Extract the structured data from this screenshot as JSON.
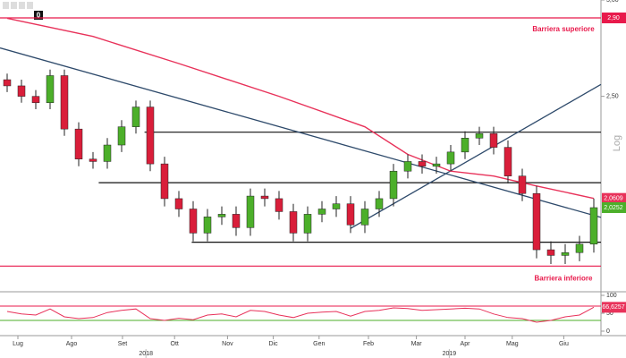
{
  "chart_data": [
    {
      "type": "candlestick",
      "log_scale": true,
      "ylim": [
        1.73,
        3.0
      ],
      "yticks": [
        {
          "value": 2.5,
          "label": "2,50"
        },
        {
          "value": 3.0,
          "label": "3,00"
        }
      ],
      "xlim": [
        -0.5,
        41.5
      ],
      "xticks": [
        {
          "value": 0.75,
          "label": "Lug"
        },
        {
          "value": 4.5,
          "label": "Ago"
        },
        {
          "value": 8.06,
          "label": "Set"
        },
        {
          "value": 11.7,
          "label": "Ott"
        },
        {
          "value": 15.4,
          "label": "Nov"
        },
        {
          "value": 18.6,
          "label": "Dic"
        },
        {
          "value": 21.8,
          "label": "Gen"
        },
        {
          "value": 25.25,
          "label": "Feb"
        },
        {
          "value": 28.6,
          "label": "Mar"
        },
        {
          "value": 32,
          "label": "Apr"
        },
        {
          "value": 35.3,
          "label": "Mag"
        },
        {
          "value": 38.9,
          "label": "Giu"
        }
      ],
      "year_ticks": [
        {
          "value": 9.7,
          "label": "2018"
        },
        {
          "value": 30.9,
          "label": "2019"
        }
      ],
      "scale_label": "Log",
      "toolbar_label": "0",
      "up_color": "#4caf2a",
      "down_color": "#d91e3a",
      "open": [
        2.58,
        2.55,
        2.5,
        2.47,
        2.6,
        2.35,
        2.22,
        2.21,
        2.28,
        2.36,
        2.45,
        2.2,
        2.06,
        2.02,
        1.93,
        1.99,
        2.0,
        1.95,
        2.07,
        2.06,
        2.01,
        1.93,
        2.0,
        2.02,
        2.04,
        1.96,
        2.02,
        2.06,
        2.17,
        2.21,
        2.19,
        2.2,
        2.25,
        2.31,
        2.33,
        2.27,
        2.15,
        2.08,
        1.87,
        1.85,
        1.86,
        1.89
      ],
      "high": [
        2.61,
        2.58,
        2.53,
        2.63,
        2.63,
        2.38,
        2.25,
        2.31,
        2.39,
        2.48,
        2.48,
        2.23,
        2.09,
        2.05,
        2.02,
        2.03,
        2.03,
        2.1,
        2.1,
        2.09,
        2.04,
        2.03,
        2.05,
        2.07,
        2.07,
        2.05,
        2.09,
        2.2,
        2.24,
        2.24,
        2.23,
        2.28,
        2.34,
        2.36,
        2.36,
        2.3,
        2.18,
        2.11,
        1.9,
        1.89,
        1.92,
        2.06
      ],
      "low": [
        2.52,
        2.47,
        2.44,
        2.44,
        2.32,
        2.19,
        2.18,
        2.18,
        2.25,
        2.33,
        2.17,
        2.03,
        1.99,
        1.9,
        1.9,
        1.96,
        1.92,
        1.92,
        2.03,
        1.98,
        1.9,
        1.9,
        1.97,
        1.99,
        1.93,
        1.93,
        1.99,
        2.03,
        2.14,
        2.16,
        2.16,
        2.17,
        2.22,
        2.28,
        2.24,
        2.12,
        2.05,
        1.84,
        1.82,
        1.82,
        1.83,
        1.86
      ],
      "close": [
        2.55,
        2.5,
        2.47,
        2.6,
        2.35,
        2.22,
        2.21,
        2.28,
        2.36,
        2.45,
        2.2,
        2.06,
        2.02,
        1.93,
        1.99,
        2.0,
        1.95,
        2.07,
        2.06,
        2.01,
        1.93,
        2.0,
        2.02,
        2.04,
        1.96,
        2.02,
        2.06,
        2.17,
        2.21,
        2.19,
        2.2,
        2.25,
        2.31,
        2.33,
        2.27,
        2.15,
        2.08,
        1.87,
        1.85,
        1.86,
        1.89,
        2.0252
      ],
      "last_close_label": "2,0252",
      "moving_average": {
        "color": "#e8325a",
        "x": [
          0,
          6,
          12,
          19,
          25,
          28,
          31,
          34,
          37,
          41
        ],
        "values": [
          2.898,
          2.8,
          2.66,
          2.5,
          2.36,
          2.24,
          2.17,
          2.15,
          2.11,
          2.0609
        ],
        "value_label": "2,0609"
      },
      "trendlines": [
        {
          "color": "#2e4a6b",
          "x": [
            -0.5,
            41.5
          ],
          "values": [
            2.74,
            1.988
          ]
        },
        {
          "color": "#2e4a6b",
          "x": [
            24,
            41.5
          ],
          "values": [
            1.947,
            2.557
          ]
        }
      ],
      "levels": [
        {
          "value": 2.9,
          "label": "2,90",
          "color": "#e8194b",
          "from": -0.5,
          "annotation": "Barriera superiore"
        },
        {
          "value": 1.813,
          "color": "#e8194b",
          "from": -0.5,
          "annotation": "Barriera inferiore"
        },
        {
          "value": 2.336,
          "color": "#111111",
          "from": 9.6
        },
        {
          "value": 2.123,
          "color": "#111111",
          "from": 6.4
        },
        {
          "value": 1.897,
          "color": "#111111",
          "from": 12.9
        }
      ]
    },
    {
      "type": "line",
      "color": "#e8325a",
      "ylim": [
        0,
        100
      ],
      "yticks": [
        0,
        50,
        100
      ],
      "values": [
        55,
        48,
        45,
        62,
        40,
        35,
        38,
        52,
        58,
        62,
        35,
        30,
        36,
        32,
        45,
        48,
        40,
        58,
        55,
        45,
        38,
        50,
        53,
        55,
        42,
        55,
        58,
        65,
        63,
        58,
        60,
        62,
        64,
        62,
        48,
        38,
        35,
        25,
        30,
        40,
        45,
        66.6257
      ],
      "value_labels": [
        null,
        null,
        null,
        null,
        null,
        null,
        null,
        null,
        null,
        null,
        null,
        null,
        null,
        null,
        null,
        null,
        null,
        null,
        null,
        null,
        null,
        null,
        null,
        null,
        null,
        null,
        null,
        null,
        null,
        null,
        null,
        null,
        null,
        null,
        null,
        null,
        null,
        null,
        null,
        null,
        null,
        "66,6257"
      ],
      "levels": [
        {
          "value": 70,
          "color": "#e8194b"
        },
        {
          "value": 30,
          "color": "#4caf2a"
        }
      ]
    }
  ]
}
